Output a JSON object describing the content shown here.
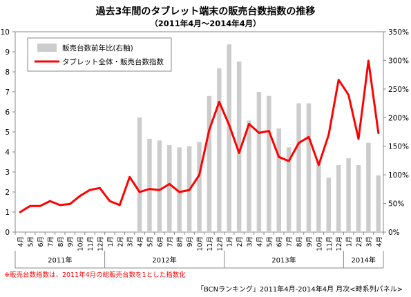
{
  "title": "過去3年間のタブレット端末の販売台数指数の推移",
  "subtitle": "（2011年4月～2014年4月）",
  "note": "※販売台数指数は、2011年4月の総販売台数を1とした指数化",
  "source": "「BCNランキング」2011年4月-2014年4月 月次<時系列パネル>",
  "chart_data": {
    "type": "bar+line",
    "categories": [
      "4月",
      "5月",
      "6月",
      "7月",
      "8月",
      "9月",
      "10月",
      "11月",
      "12月",
      "1月",
      "2月",
      "3月",
      "4月",
      "5月",
      "6月",
      "7月",
      "8月",
      "9月",
      "10月",
      "11月",
      "12月",
      "1月",
      "2月",
      "3月",
      "4月",
      "5月",
      "6月",
      "7月",
      "8月",
      "9月",
      "10月",
      "11月",
      "12月",
      "1月",
      "2月",
      "3月",
      "4月"
    ],
    "year_labels": [
      {
        "label": "2011年",
        "start": 0,
        "end": 8
      },
      {
        "label": "2012年",
        "start": 9,
        "end": 20
      },
      {
        "label": "2013年",
        "start": 21,
        "end": 32
      },
      {
        "label": "2014年",
        "start": 33,
        "end": 36
      }
    ],
    "series": [
      {
        "name": "販売台数前年比(右軸)",
        "type": "bar",
        "axis": "right",
        "color": "#cccccc",
        "values": [
          null,
          null,
          null,
          null,
          null,
          null,
          null,
          null,
          null,
          null,
          null,
          null,
          200,
          163,
          160,
          152,
          148,
          150,
          157,
          238,
          286,
          328,
          298,
          195,
          245,
          238,
          181,
          148,
          225,
          225,
          122,
          95,
          117,
          129,
          117,
          156,
          99
        ]
      },
      {
        "name": "タブレット全体・販売台数指数",
        "type": "line",
        "axis": "left",
        "color": "#ff0000",
        "values": [
          1.0,
          1.3,
          1.3,
          1.55,
          1.35,
          1.4,
          1.8,
          2.1,
          2.2,
          1.55,
          1.35,
          2.75,
          2.0,
          2.15,
          2.1,
          2.4,
          2.0,
          2.1,
          2.85,
          5.1,
          6.5,
          5.35,
          3.95,
          5.4,
          4.95,
          5.05,
          3.75,
          3.55,
          4.45,
          4.75,
          3.35,
          4.85,
          7.6,
          6.85,
          4.65,
          8.55,
          4.95
        ]
      }
    ],
    "y_left": {
      "min": 0,
      "max": 10,
      "ticks": [
        "0",
        "1",
        "2",
        "3",
        "4",
        "5",
        "6",
        "7",
        "8",
        "9",
        "10"
      ]
    },
    "y_right": {
      "min": 0,
      "max": 350,
      "ticks": [
        "0%",
        "50%",
        "100%",
        "150%",
        "200%",
        "250%",
        "300%",
        "350%"
      ]
    },
    "grid": false,
    "legend_position": "top-left"
  }
}
